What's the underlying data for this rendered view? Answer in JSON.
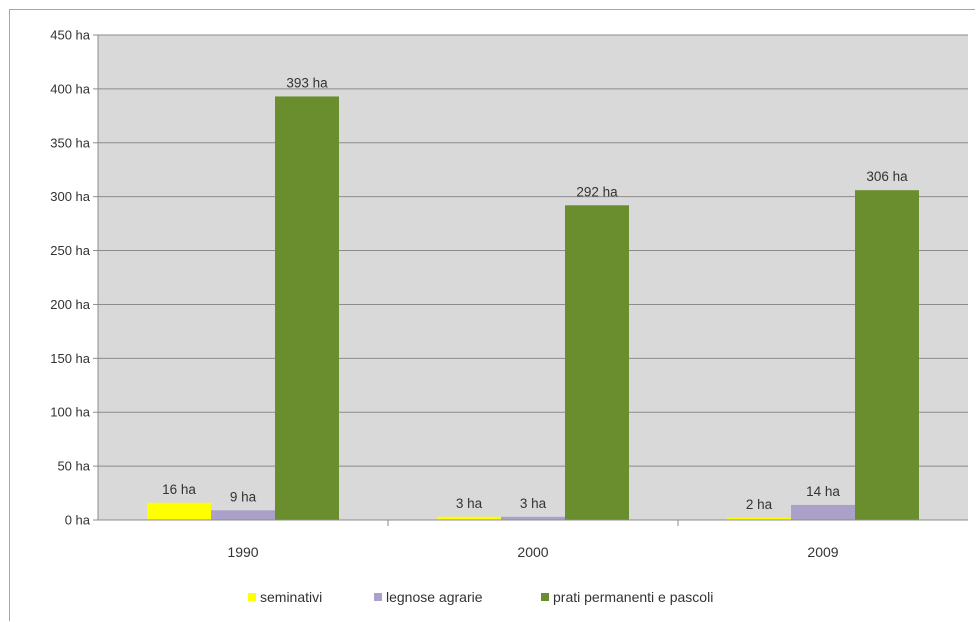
{
  "chart_data": {
    "type": "bar",
    "categories": [
      "1990",
      "2000",
      "2009"
    ],
    "series": [
      {
        "name": "seminativi",
        "values": [
          16,
          3,
          2
        ],
        "labels": [
          "16 ha",
          "3 ha",
          "2 ha"
        ],
        "color": "#ffff00"
      },
      {
        "name": "legnose agrarie",
        "values": [
          9,
          3,
          14
        ],
        "labels": [
          "9 ha",
          "3 ha",
          "14 ha"
        ],
        "color": "#aaa0c8"
      },
      {
        "name": "prati permanenti e pascoli",
        "values": [
          393,
          292,
          306
        ],
        "labels": [
          "393 ha",
          "292 ha",
          "306 ha"
        ],
        "color": "#6a8e2e"
      }
    ],
    "yticks": [
      "0 ha",
      "50 ha",
      "100 ha",
      "150 ha",
      "200 ha",
      "250 ha",
      "300 ha",
      "350 ha",
      "400 ha",
      "450 ha"
    ],
    "ylim": [
      0,
      450
    ],
    "ytick_step": 50,
    "grid": true,
    "plot_background": "#d9d9d9",
    "gridline_color": "#8c8c8c",
    "legend_position": "bottom",
    "title": "",
    "xlabel": "",
    "ylabel": ""
  }
}
